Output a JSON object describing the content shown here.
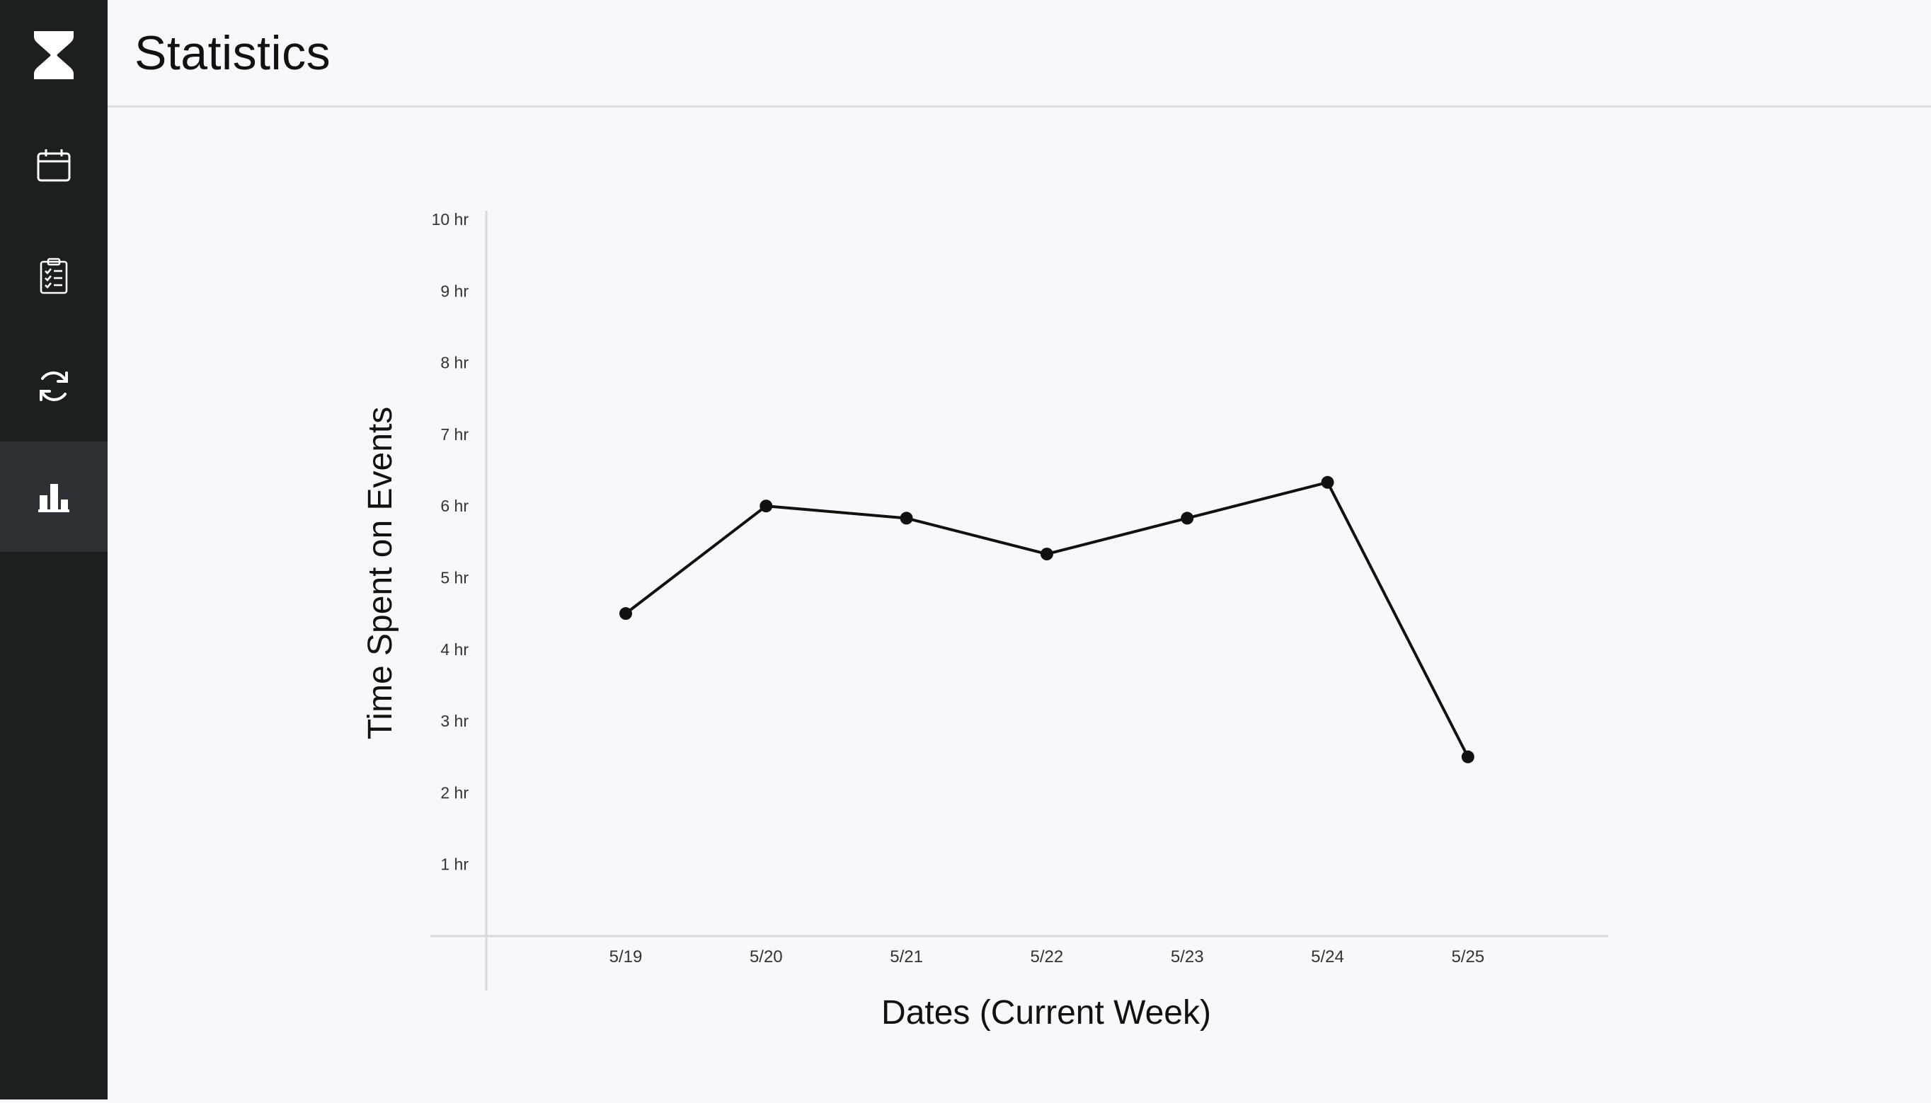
{
  "header": {
    "title": "Statistics"
  },
  "sidebar": {
    "items": [
      {
        "icon": "hourglass-logo-icon"
      },
      {
        "icon": "calendar-icon"
      },
      {
        "icon": "clipboard-checklist-icon"
      },
      {
        "icon": "refresh-icon"
      },
      {
        "icon": "bar-chart-icon",
        "active": true
      }
    ]
  },
  "chart_data": {
    "type": "line",
    "title": "",
    "xlabel": "Dates (Current Week)",
    "ylabel": "Time Spent on Events",
    "categories": [
      "5/19",
      "5/20",
      "5/21",
      "5/22",
      "5/23",
      "5/24",
      "5/25"
    ],
    "y_tick_labels": [
      "1 hr",
      "2 hr",
      "3 hr",
      "4 hr",
      "5 hr",
      "6 hr",
      "7 hr",
      "8 hr",
      "9 hr",
      "10 hr"
    ],
    "ylim": [
      0,
      10
    ],
    "series": [
      {
        "values": [
          4.5,
          6.0,
          5.83,
          5.33,
          5.83,
          6.33,
          2.5
        ]
      }
    ],
    "grid": false,
    "line_color": "#111111",
    "axis_color": "#d6d8dc"
  }
}
